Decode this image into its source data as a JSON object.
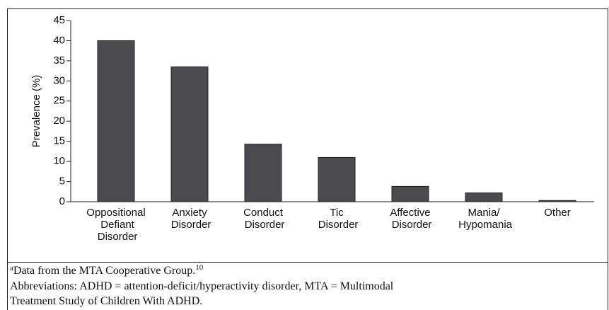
{
  "chart_data": {
    "type": "bar",
    "y_label": "Prevalence (%)",
    "categories": [
      "Oppositional\nDefiant\nDisorder",
      "Anxiety\nDisorder",
      "Conduct\nDisorder",
      "Tic\nDisorder",
      "Affective\nDisorder",
      "Mania/\nHypomania",
      "Other"
    ],
    "values": [
      40,
      33.5,
      14.3,
      11,
      3.8,
      2.2,
      0.3
    ],
    "color": "#4a4a4f",
    "ylim": [
      0,
      45
    ],
    "yticks": [
      0,
      5,
      10,
      15,
      20,
      25,
      30,
      35,
      40,
      45
    ],
    "grid": false
  },
  "footnotes": {
    "source": {
      "marker": "a",
      "text": "Data from the MTA Cooperative Group.",
      "ref": "10"
    },
    "abbreviations": [
      "Abbreviations: ADHD = attention-deficit/hyperactivity disorder, MTA = Multimodal",
      "Treatment Study of Children With ADHD."
    ]
  }
}
